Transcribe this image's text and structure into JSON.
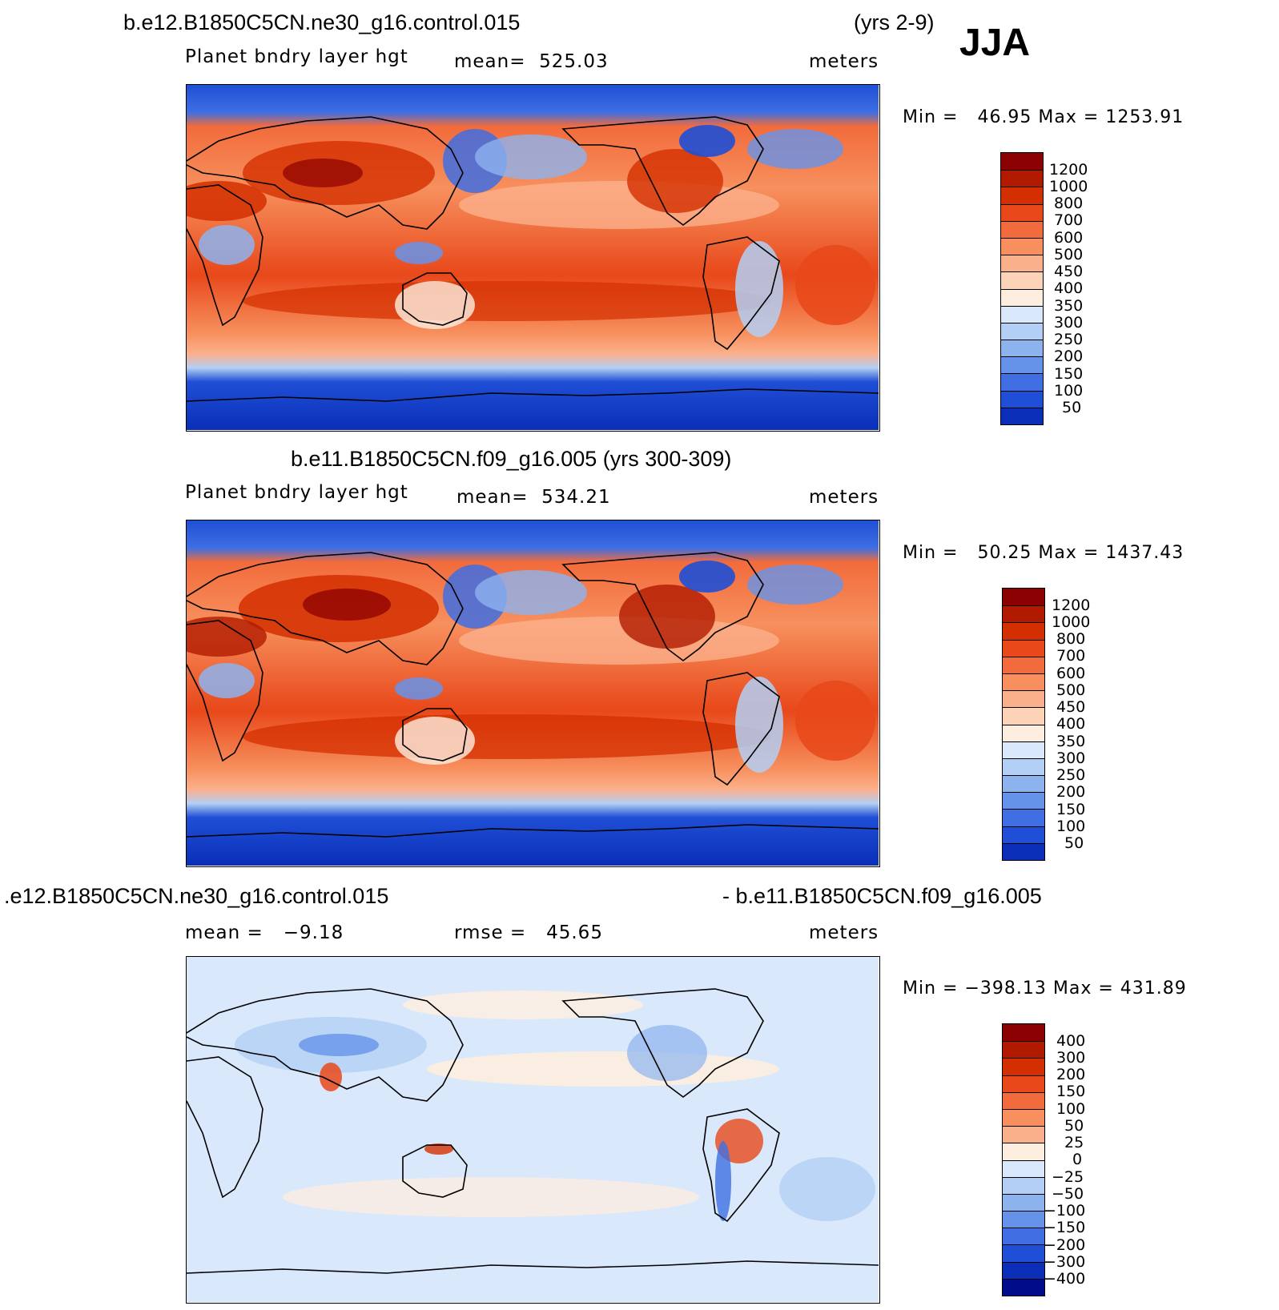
{
  "season": "JJA",
  "panels": [
    {
      "title": "b.e12.B1850C5CN.ne30_g16.control.015",
      "title_right": "(yrs 2-9)",
      "var_label": "Planet bndry layer hgt",
      "stat_label": "mean=  525.03",
      "units": "meters",
      "minmax": "Min =   46.95 Max = 1253.91"
    },
    {
      "title": "b.e11.B1850C5CN.f09_g16.005 (yrs 300-309)",
      "var_label": "Planet bndry layer hgt",
      "stat_label": "mean=  534.21",
      "units": "meters",
      "minmax": "Min =   50.25 Max = 1437.43"
    },
    {
      "title": ".e12.B1850C5CN.ne30_g16.control.015",
      "title_right": "- b.e11.B1850C5CN.f09_g16.005",
      "var_label": "mean =   −9.18",
      "stat_label": "rmse =   45.65",
      "units": "meters",
      "minmax": "Min = −398.13 Max = 431.89"
    }
  ],
  "legend_abs": {
    "labels": [
      "1200",
      "1000",
      "800",
      "700",
      "600",
      "500",
      "450",
      "400",
      "350",
      "300",
      "250",
      "200",
      "150",
      "100",
      "50"
    ],
    "colors": [
      "#8b0000",
      "#b21a00",
      "#d42f00",
      "#e8481a",
      "#f26b3c",
      "#f7905e",
      "#fbb08c",
      "#fdd3b8",
      "#fdeee0",
      "#d9e8fa",
      "#b3cff5",
      "#8db3ef",
      "#6693ea",
      "#3f6fe2",
      "#1f4fd6",
      "#0a2eb8"
    ]
  },
  "legend_diff": {
    "labels": [
      "400",
      "300",
      "200",
      "150",
      "100",
      "50",
      "25",
      "0",
      "−25",
      "−50",
      "−100",
      "−150",
      "−200",
      "−300",
      "−400"
    ],
    "colors": [
      "#8b0000",
      "#b21a00",
      "#d42f00",
      "#e8481a",
      "#f26b3c",
      "#f7905e",
      "#fbb08c",
      "#fdeee0",
      "#d9e8fa",
      "#b3cff5",
      "#8db3ef",
      "#6693ea",
      "#3f6fe2",
      "#1f4fd6",
      "#0a2eb8",
      "#000c8a"
    ]
  }
}
